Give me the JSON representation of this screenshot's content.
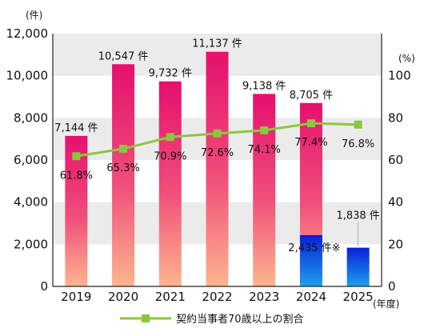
{
  "chart_data": {
    "type": "bar",
    "categories": [
      "2019",
      "2020",
      "2021",
      "2022",
      "2023",
      "2024",
      "2025"
    ],
    "left_unit": "(件)",
    "right_unit": "(%)",
    "x_unit": "(年度)",
    "ylim": [
      0,
      12000
    ],
    "y2lim": [
      0,
      120
    ],
    "y_ticks": [
      "0",
      "2,000",
      "4,000",
      "6,000",
      "8,000",
      "10,000",
      "12,000"
    ],
    "y2_ticks": [
      "0",
      "20",
      "40",
      "60",
      "80",
      "100"
    ],
    "grid_bands": true,
    "series": [
      {
        "kind": "bar",
        "values": [
          7144,
          10547,
          9732,
          11137,
          9138,
          8705,
          null
        ],
        "labels": [
          "7,144 件",
          "10,547 件",
          "9,732 件",
          "11,137 件",
          "9,138 件",
          "8,705 件",
          ""
        ],
        "colors": {
          "top": "#e5106e",
          "bottom": "#fdb58f"
        }
      },
      {
        "kind": "bar",
        "values": [
          null,
          null,
          null,
          null,
          null,
          2435,
          1838
        ],
        "labels": [
          "",
          "",
          "",
          "",
          "",
          "2,435 件※",
          "1,838 件"
        ],
        "colors": {
          "top": "#0a1fd8",
          "bottom": "#1ea0ee"
        }
      },
      {
        "kind": "line",
        "name": "契約当事者70歳以上の割合",
        "axis": "right",
        "values": [
          61.8,
          65.3,
          70.9,
          72.6,
          74.1,
          77.4,
          76.8
        ],
        "labels": [
          "61.8%",
          "65.3%",
          "70.9%",
          "72.6%",
          "74.1%",
          "77.4%",
          "76.8%"
        ],
        "color": "#8cc63f"
      }
    ]
  }
}
